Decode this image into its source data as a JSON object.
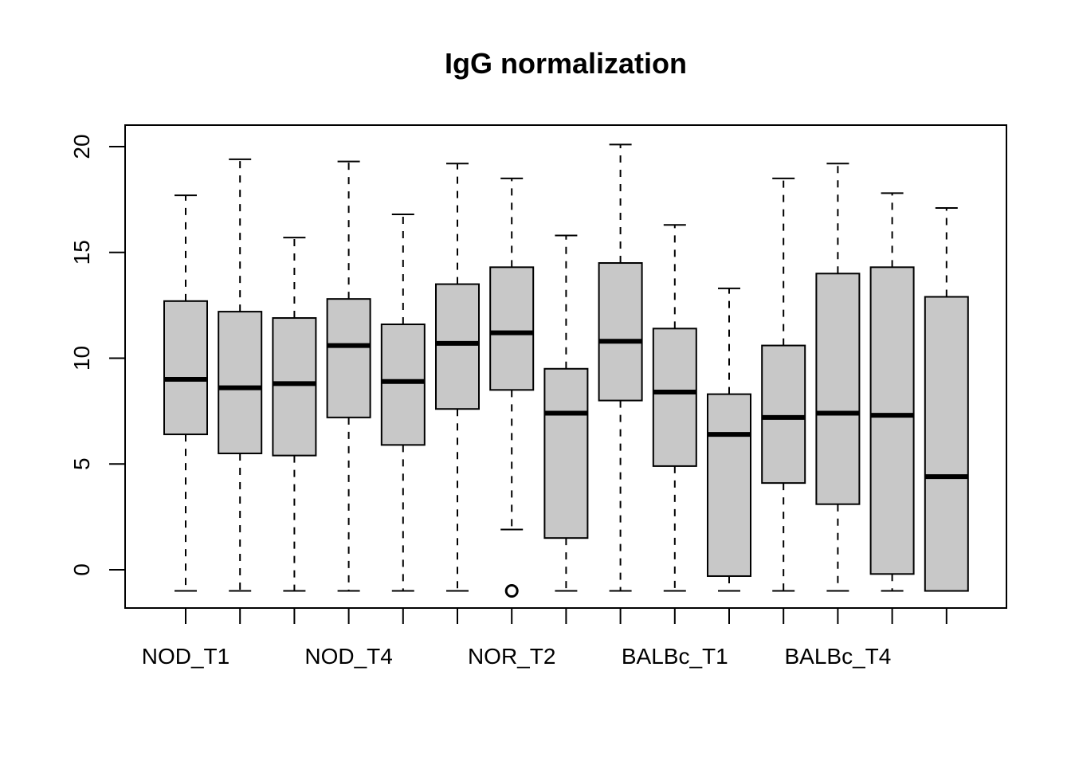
{
  "chart_data": {
    "type": "box",
    "title": "IgG normalization",
    "xlabel": "",
    "ylabel": "",
    "ylim": [
      -1.8,
      21.0
    ],
    "yticks": [
      0,
      5,
      10,
      15,
      20
    ],
    "grid": false,
    "legend": "none",
    "box_fill": "#c8c8c8",
    "categories": [
      "NOD_T1",
      "",
      "",
      "NOD_T4",
      "",
      "",
      "NOR_T2",
      "",
      "",
      "BALBc_T1",
      "",
      "",
      "BALBc_T4",
      "",
      ""
    ],
    "boxes": [
      {
        "whisker_low": -1,
        "q1": 6.4,
        "median": 9.0,
        "q3": 12.7,
        "whisker_high": 17.7,
        "outliers": []
      },
      {
        "whisker_low": -1,
        "q1": 5.5,
        "median": 8.6,
        "q3": 12.2,
        "whisker_high": 19.4,
        "outliers": []
      },
      {
        "whisker_low": -1,
        "q1": 5.4,
        "median": 8.8,
        "q3": 11.9,
        "whisker_high": 15.7,
        "outliers": []
      },
      {
        "whisker_low": -1,
        "q1": 7.2,
        "median": 10.6,
        "q3": 12.8,
        "whisker_high": 19.3,
        "outliers": []
      },
      {
        "whisker_low": -1,
        "q1": 5.9,
        "median": 8.9,
        "q3": 11.6,
        "whisker_high": 16.8,
        "outliers": []
      },
      {
        "whisker_low": -1,
        "q1": 7.6,
        "median": 10.7,
        "q3": 13.5,
        "whisker_high": 19.2,
        "outliers": []
      },
      {
        "whisker_low": 1.9,
        "q1": 8.5,
        "median": 11.2,
        "q3": 14.3,
        "whisker_high": 18.5,
        "outliers": [
          -1
        ]
      },
      {
        "whisker_low": -1,
        "q1": 1.5,
        "median": 7.4,
        "q3": 9.5,
        "whisker_high": 15.8,
        "outliers": []
      },
      {
        "whisker_low": -1,
        "q1": 8.0,
        "median": 10.8,
        "q3": 14.5,
        "whisker_high": 20.1,
        "outliers": []
      },
      {
        "whisker_low": -1,
        "q1": 4.9,
        "median": 8.4,
        "q3": 11.4,
        "whisker_high": 16.3,
        "outliers": []
      },
      {
        "whisker_low": -1,
        "q1": -0.3,
        "median": 6.4,
        "q3": 8.3,
        "whisker_high": 13.3,
        "outliers": []
      },
      {
        "whisker_low": -1,
        "q1": 4.1,
        "median": 7.2,
        "q3": 10.6,
        "whisker_high": 18.5,
        "outliers": []
      },
      {
        "whisker_low": -1,
        "q1": 3.1,
        "median": 7.4,
        "q3": 14.0,
        "whisker_high": 19.2,
        "outliers": []
      },
      {
        "whisker_low": -1,
        "q1": -0.2,
        "median": 7.3,
        "q3": 14.3,
        "whisker_high": 17.8,
        "outliers": []
      },
      {
        "whisker_low": -1,
        "q1": -1,
        "median": 4.4,
        "q3": 12.9,
        "whisker_high": 17.1,
        "outliers": []
      }
    ]
  }
}
